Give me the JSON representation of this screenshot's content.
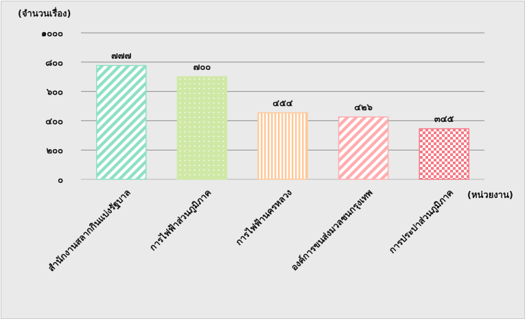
{
  "chart_data": {
    "type": "bar",
    "title": "",
    "ylabel": "(จำนวนเรื่อง)",
    "xlabel": "(หน่วยงาน)",
    "ylim": [
      0,
      1000
    ],
    "yticks": [
      0,
      200,
      400,
      600,
      800,
      1000
    ],
    "ytick_labels": [
      "๐",
      "๒๐๐",
      "๔๐๐",
      "๖๐๐",
      "๘๐๐",
      "๑๐๐๐"
    ],
    "grid": true,
    "categories": [
      "สำนักงานสลากกินแบ่งรัฐบาล",
      "การไฟฟ้าส่วนภูมิภาค",
      "การไฟฟ้านครหลวง",
      "องค์การขนส่งมวลชนกรุงเทพ",
      "การประปาส่วนภูมิภาค"
    ],
    "values": [
      777,
      700,
      454,
      426,
      345
    ],
    "value_labels": [
      "๗๗๗",
      "๗๐๐",
      "๔๕๔",
      "๔๒๖",
      "๓๔๕"
    ],
    "colors": [
      "#8fe0c4",
      "#cfe8a6",
      "#ffc99a",
      "#ffadb0",
      "#f47a86"
    ]
  }
}
